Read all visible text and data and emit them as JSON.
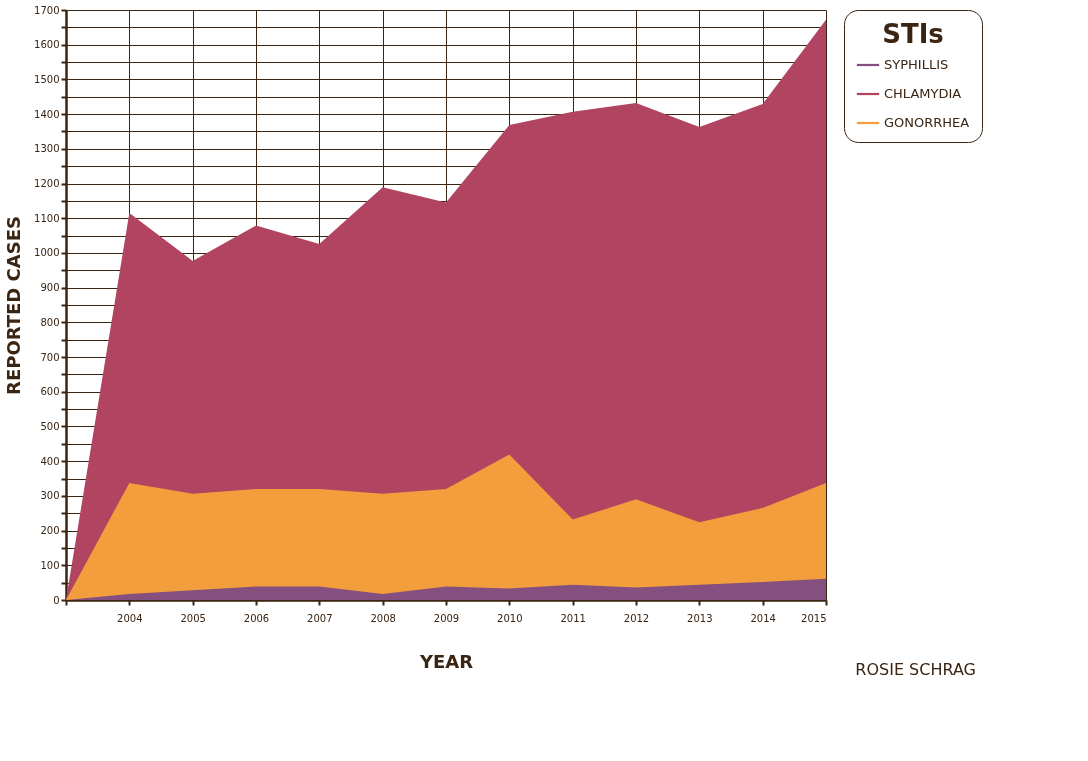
{
  "chart_data": {
    "type": "area",
    "xlabel": "YEAR",
    "ylabel": "REPORTED CASES",
    "legend_title": "STIs",
    "x": [
      2003,
      2004,
      2005,
      2006,
      2007,
      2008,
      2009,
      2010,
      2011,
      2012,
      2013,
      2014,
      2015
    ],
    "series": [
      {
        "name": "SYPHILLIS",
        "color": "#85507f",
        "values": [
          0,
          17,
          28,
          39,
          39,
          17,
          39,
          33,
          44,
          36,
          44,
          52,
          61
        ]
      },
      {
        "name": "CHLAMYDIA",
        "color": "#b14561",
        "values": [
          0,
          1115,
          977,
          1079,
          1026,
          1189,
          1145,
          1369,
          1407,
          1432,
          1363,
          1429,
          1672
        ]
      },
      {
        "name": "GONORRHEA",
        "color": "#f29e3c",
        "values": [
          0,
          337,
          306,
          320,
          320,
          306,
          320,
          419,
          232,
          290,
          224,
          265,
          337
        ]
      }
    ],
    "xlim": [
      2003,
      2015
    ],
    "xticks": [
      {
        "value": 2003,
        "label": null
      },
      2004,
      2005,
      2006,
      2007,
      2008,
      2009,
      2010,
      2011,
      2012,
      2013,
      2014,
      2015
    ],
    "ylim": [
      0,
      1700
    ],
    "yticks": [
      0,
      {
        "value": 50,
        "label": null
      },
      100,
      {
        "value": 150,
        "label": null
      },
      200,
      {
        "value": 250,
        "label": null
      },
      300,
      {
        "value": 350,
        "label": null
      },
      400,
      {
        "value": 450,
        "label": null
      },
      500,
      {
        "value": 550,
        "label": null
      },
      600,
      {
        "value": 650,
        "label": null
      },
      700,
      {
        "value": 750,
        "label": null
      },
      800,
      {
        "value": 850,
        "label": null
      },
      900,
      {
        "value": 950,
        "label": null
      },
      1000,
      {
        "value": 1050,
        "label": null
      },
      1100,
      {
        "value": 1150,
        "label": null
      },
      1200,
      {
        "value": 1250,
        "label": null
      },
      1300,
      {
        "value": 1350,
        "label": null
      },
      1400,
      {
        "value": 1450,
        "label": null
      },
      1500,
      {
        "value": 1550,
        "label": null
      },
      1600,
      {
        "value": 1650,
        "label": null
      },
      1700
    ],
    "grid": true,
    "legend": "right",
    "annotations": [
      "ROSIE SCHRAG"
    ]
  }
}
